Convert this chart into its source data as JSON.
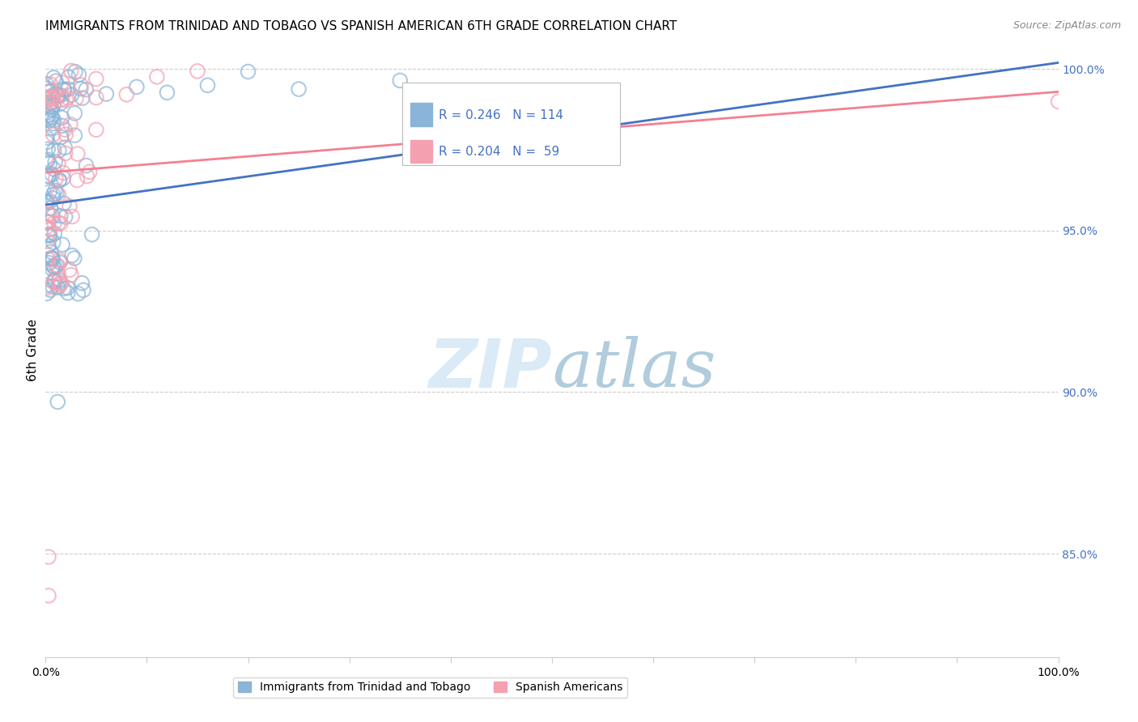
{
  "title": "IMMIGRANTS FROM TRINIDAD AND TOBAGO VS SPANISH AMERICAN 6TH GRADE CORRELATION CHART",
  "source": "Source: ZipAtlas.com",
  "ylabel": "6th Grade",
  "ylabel_right_labels": [
    "100.0%",
    "95.0%",
    "90.0%",
    "85.0%"
  ],
  "ylabel_right_values": [
    1.0,
    0.95,
    0.9,
    0.85
  ],
  "legend_blue_label": "Immigrants from Trinidad and Tobago",
  "legend_pink_label": "Spanish Americans",
  "r_blue": 0.246,
  "n_blue": 114,
  "r_pink": 0.204,
  "n_pink": 59,
  "blue_scatter_color": "#8ab4d8",
  "pink_scatter_color": "#f4a0b0",
  "blue_line_color": "#4472C4",
  "pink_line_color": "#f48090",
  "stats_text_color": "#4472C4",
  "watermark_color": "#daeaf6",
  "right_axis_color": "#4472C4",
  "grid_color": "#cccccc",
  "ylim_min": 0.818,
  "ylim_max": 1.008,
  "xlim_min": 0.0,
  "xlim_max": 1.0
}
